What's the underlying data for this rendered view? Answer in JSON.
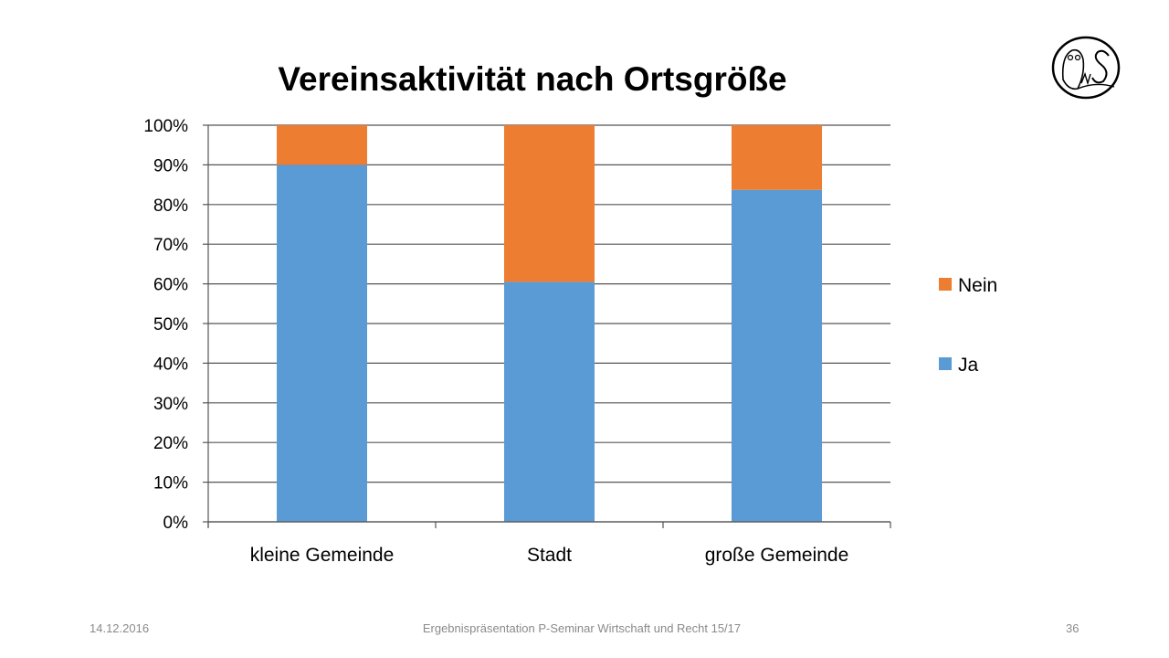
{
  "chart_data": {
    "type": "bar",
    "stacked": true,
    "title": "Vereinsaktivität nach Ortsgröße",
    "categories": [
      "kleine Gemeinde",
      "Stadt",
      "große Gemeinde"
    ],
    "series": [
      {
        "name": "Ja",
        "color": "#5B9BD5",
        "values": [
          90,
          60.5,
          83.7
        ]
      },
      {
        "name": "Nein",
        "color": "#ED7D31",
        "values": [
          10,
          39.5,
          16.3
        ]
      }
    ],
    "ylim": [
      0,
      100
    ],
    "yticks": [
      "0%",
      "10%",
      "20%",
      "30%",
      "40%",
      "50%",
      "60%",
      "70%",
      "80%",
      "90%",
      "100%"
    ],
    "xlabel": "",
    "ylabel": "",
    "grid": true,
    "legend": "right",
    "legend_order": [
      "Nein",
      "Ja"
    ]
  },
  "footer": {
    "date": "14.12.2016",
    "text": "Ergebnispräsentation P-Seminar Wirtschaft und Recht 15/17",
    "page": "36"
  },
  "logo": {
    "icon": "owl-ms-logo-icon",
    "text": "MS"
  }
}
